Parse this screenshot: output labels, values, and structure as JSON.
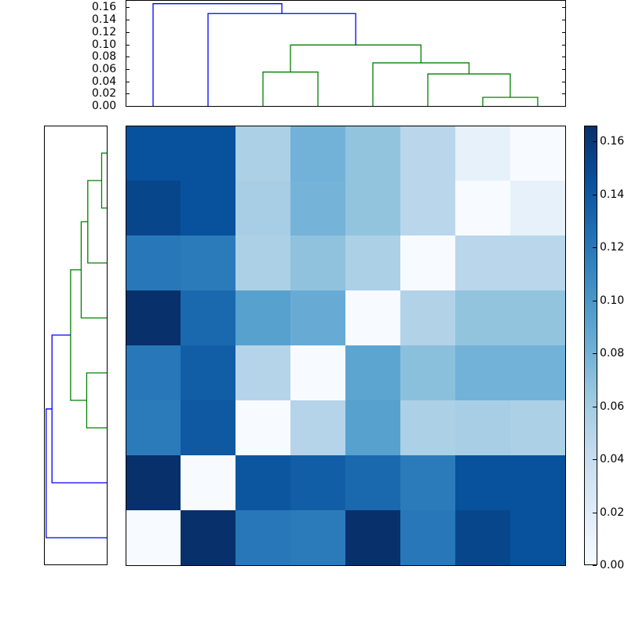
{
  "chart_data": {
    "type": "heatmap",
    "title": "",
    "rows": 8,
    "cols": 8,
    "colormap": "Blues",
    "vmin": 0.0,
    "vmax": 0.166,
    "values": [
      [
        0.145,
        0.145,
        0.055,
        0.08,
        0.067,
        0.048,
        0.013,
        0.0
      ],
      [
        0.152,
        0.145,
        0.057,
        0.079,
        0.067,
        0.048,
        0.0,
        0.013
      ],
      [
        0.12,
        0.118,
        0.055,
        0.068,
        0.055,
        0.0,
        0.048,
        0.048
      ],
      [
        0.166,
        0.13,
        0.093,
        0.085,
        0.0,
        0.052,
        0.067,
        0.067
      ],
      [
        0.12,
        0.137,
        0.05,
        0.0,
        0.09,
        0.07,
        0.08,
        0.08
      ],
      [
        0.118,
        0.14,
        0.0,
        0.05,
        0.093,
        0.055,
        0.057,
        0.055
      ],
      [
        0.166,
        0.0,
        0.142,
        0.137,
        0.13,
        0.118,
        0.145,
        0.145
      ],
      [
        0.0,
        0.166,
        0.12,
        0.118,
        0.166,
        0.12,
        0.152,
        0.145
      ]
    ],
    "colorbar": {
      "ticks": [
        "0.00",
        "0.02",
        "0.04",
        "0.06",
        "0.08",
        "0.10",
        "0.12",
        "0.14",
        "0.16"
      ]
    },
    "top_dendrogram": {
      "ylabel_ticks": [
        "0.00",
        "0.02",
        "0.04",
        "0.06",
        "0.08",
        "0.10",
        "0.12",
        "0.14",
        "0.16"
      ],
      "ylim": [
        0,
        0.172
      ],
      "leaves": 8,
      "links": [
        {
          "left": 6,
          "right": 7,
          "height": 0.014,
          "color": "green"
        },
        {
          "left": 5,
          "right": "6-7",
          "height": 0.052,
          "color": "green"
        },
        {
          "left": 4,
          "right": "5-7",
          "height": 0.07,
          "color": "green"
        },
        {
          "left": 2,
          "right": 3,
          "height": 0.055,
          "color": "green"
        },
        {
          "left": "2-3",
          "right": "4-7",
          "height": 0.099,
          "color": "green"
        },
        {
          "left": 1,
          "right": "2-7",
          "height": 0.15,
          "color": "blue"
        },
        {
          "left": 0,
          "right": "1-7",
          "height": 0.166,
          "color": "blue"
        }
      ]
    },
    "left_dendrogram": {
      "orientation": "left",
      "leaves": 8,
      "mirrors": "top_dendrogram"
    }
  },
  "colors": {
    "blue_link": "#0000ff",
    "green_link": "#008000"
  }
}
